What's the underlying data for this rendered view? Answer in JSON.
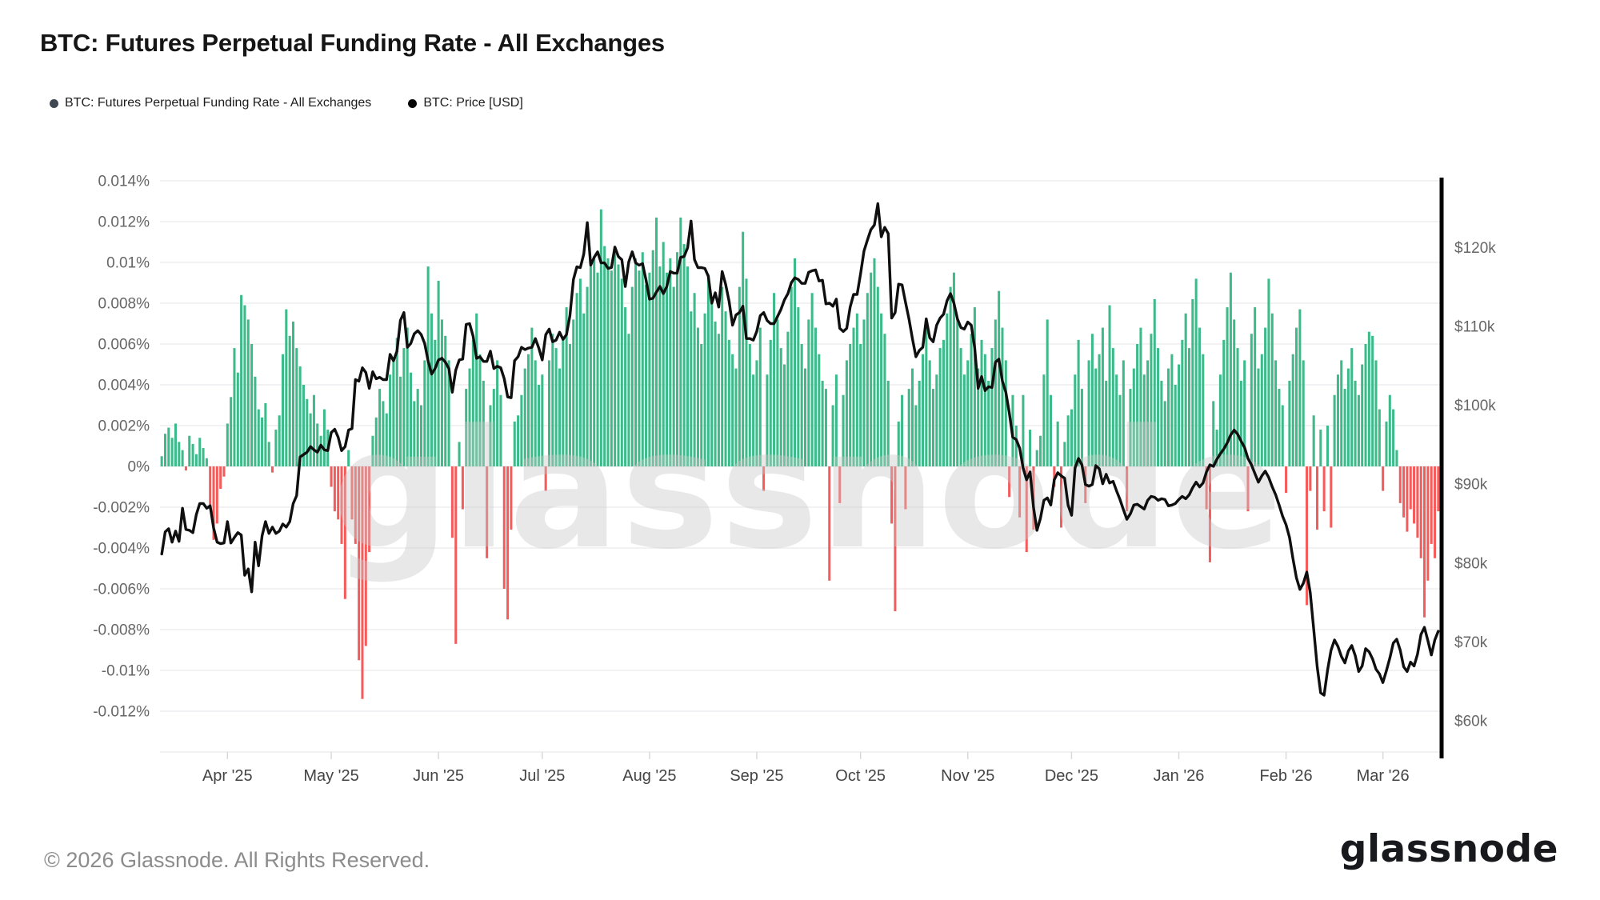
{
  "title": "BTC: Futures Perpetual Funding Rate - All Exchanges",
  "legend": [
    {
      "label": "BTC: Futures Perpetual Funding Rate - All Exchanges",
      "dot_color": "#3f4752"
    },
    {
      "label": "BTC: Price [USD]",
      "dot_color": "#050505"
    }
  ],
  "watermark": "glassnode",
  "footer": {
    "copyright": "© 2026 Glassnode. All Rights Reserved.",
    "logo_text": "glassnode"
  },
  "colors": {
    "funding_positive": "#3bbа8a",
    "positive_bar": "#3cba89",
    "negative_bar": "#f45b5b",
    "price_line": "#0f0f0f",
    "gridline": "#ededf0",
    "axis_spine": "#000000",
    "tick_label": "#666666",
    "x_tick_label": "#444444",
    "watermark_fill": "#c9c9c9"
  },
  "chart_data": {
    "type": "bar",
    "subtype": "combo-bar-line",
    "start_date": "2025-03-13",
    "end_date": "2026-03-17",
    "x_tick_labels": [
      "Apr '25",
      "May '25",
      "Jun '25",
      "Jul '25",
      "Aug '25",
      "Sep '25",
      "Oct '25",
      "Nov '25",
      "Dec '25",
      "Jan '26",
      "Feb '26",
      "Mar '26"
    ],
    "x_tick_day_index": [
      19,
      49,
      80,
      110,
      141,
      172,
      202,
      233,
      263,
      294,
      325,
      353
    ],
    "left_axis": {
      "title": "Funding Rate",
      "unit": "%",
      "min": -0.014,
      "max": 0.014,
      "ticks": [
        {
          "label": "0.014%",
          "value": 0.014
        },
        {
          "label": "0.012%",
          "value": 0.012
        },
        {
          "label": "0.01%",
          "value": 0.01
        },
        {
          "label": "0.008%",
          "value": 0.008
        },
        {
          "label": "0.006%",
          "value": 0.006
        },
        {
          "label": "0.004%",
          "value": 0.004
        },
        {
          "label": "0.002%",
          "value": 0.002
        },
        {
          "label": "0%",
          "value": 0
        },
        {
          "label": "-0.002%",
          "value": -0.002
        },
        {
          "label": "-0.004%",
          "value": -0.004
        },
        {
          "label": "-0.006%",
          "value": -0.006
        },
        {
          "label": "-0.008%",
          "value": -0.008
        },
        {
          "label": "-0.01%",
          "value": -0.01
        },
        {
          "label": "-0.012%",
          "value": -0.012
        }
      ],
      "unlabeled_gridlines": [
        -0.014
      ]
    },
    "right_axis": {
      "title": "BTC Price",
      "unit": "USD",
      "min": 56.0,
      "max": 128.4,
      "ticks": [
        {
          "label": "$120k",
          "value": 120
        },
        {
          "label": "$110k",
          "value": 110
        },
        {
          "label": "$100k",
          "value": 100
        },
        {
          "label": "$90k",
          "value": 90
        },
        {
          "label": "$80k",
          "value": 80
        },
        {
          "label": "$70k",
          "value": 70
        },
        {
          "label": "$60k",
          "value": 60
        }
      ]
    },
    "series": [
      {
        "name": "BTC: Futures Perpetual Funding Rate - All Exchanges",
        "type": "bar",
        "unit": "%",
        "axis": "left",
        "values": [
          0.0005,
          0.0016,
          0.0019,
          0.0014,
          0.0021,
          0.0012,
          0.0008,
          -0.0002,
          0.0015,
          0.0011,
          0.0006,
          0.0014,
          0.0009,
          0.0004,
          -0.0021,
          -0.0036,
          -0.0028,
          -0.0011,
          -0.0005,
          0.0021,
          0.0034,
          0.0058,
          0.0046,
          0.0084,
          0.0079,
          0.0072,
          0.006,
          0.0044,
          0.0028,
          0.0024,
          0.0031,
          0.0012,
          -0.0003,
          0.0018,
          0.0025,
          0.0055,
          0.0077,
          0.0064,
          0.0071,
          0.0058,
          0.0049,
          0.004,
          0.0033,
          0.0026,
          0.0035,
          0.0021,
          0.0015,
          0.0028,
          0.0018,
          -0.001,
          -0.0022,
          -0.0026,
          -0.0038,
          -0.0065,
          0.0008,
          -0.0026,
          -0.0038,
          -0.0095,
          -0.0114,
          -0.0088,
          -0.0042,
          0.0015,
          0.0024,
          0.0038,
          0.0032,
          0.0026,
          0.0045,
          0.0052,
          0.0063,
          0.0044,
          0.0058,
          0.0068,
          0.0046,
          0.0032,
          0.0038,
          0.003,
          0.0052,
          0.0098,
          0.0075,
          0.0062,
          0.0091,
          0.0072,
          0.0064,
          0.0052,
          -0.0035,
          -0.0087,
          0.0012,
          -0.0021,
          0.0038,
          0.0048,
          0.0062,
          0.0075,
          0.0055,
          0.0042,
          -0.0045,
          0.003,
          0.0038,
          0.0052,
          0.0035,
          -0.006,
          -0.0075,
          -0.0031,
          0.0022,
          0.0025,
          0.0035,
          0.0048,
          0.0055,
          0.0068,
          0.0052,
          0.004,
          0.0045,
          -0.0012,
          0.0052,
          0.0065,
          0.0058,
          0.0048,
          0.0062,
          0.0078,
          0.006,
          0.0072,
          0.0085,
          0.0092,
          0.0075,
          0.0088,
          0.0098,
          0.0102,
          0.0095,
          0.0126,
          0.0108,
          0.0102,
          0.0096,
          0.0105,
          0.0099,
          0.0092,
          0.0078,
          0.0065,
          0.0088,
          0.0102,
          0.0096,
          0.0105,
          0.0089,
          0.0095,
          0.0106,
          0.0122,
          0.0098,
          0.011,
          0.0095,
          0.0102,
          0.0088,
          0.0105,
          0.0122,
          0.0109,
          0.0098,
          0.0076,
          0.0085,
          0.0068,
          0.006,
          0.0075,
          0.0094,
          0.0082,
          0.0071,
          0.0065,
          0.0088,
          0.0076,
          0.0062,
          0.0055,
          0.0048,
          0.0088,
          0.0115,
          0.0092,
          0.006,
          0.0045,
          0.0052,
          0.0068,
          -0.0012,
          0.0045,
          0.0062,
          0.0085,
          0.0072,
          0.0058,
          0.005,
          0.0066,
          0.0088,
          0.0102,
          0.0078,
          0.006,
          0.0048,
          0.0072,
          0.0085,
          0.0068,
          0.0055,
          0.0042,
          0.0038,
          -0.0056,
          0.003,
          0.0045,
          -0.0018,
          0.0035,
          0.0052,
          0.006,
          0.0068,
          0.0075,
          0.006,
          0.0072,
          0.0085,
          0.0095,
          0.0102,
          0.0088,
          0.0075,
          0.0065,
          0.0042,
          -0.0028,
          -0.0071,
          0.0022,
          0.0035,
          -0.0021,
          0.0038,
          0.0048,
          0.003,
          0.0042,
          0.0055,
          0.0068,
          0.0052,
          0.0038,
          0.0045,
          0.0058,
          0.0062,
          0.0075,
          0.0088,
          0.0095,
          0.0072,
          0.0058,
          0.0045,
          0.0052,
          0.0065,
          0.0078,
          0.0048,
          0.0062,
          0.0055,
          0.0042,
          0.0058,
          0.0072,
          0.0086,
          0.0068,
          0.0052,
          -0.0015,
          0.0035,
          0.002,
          -0.0025,
          0.0035,
          -0.0042,
          0.0018,
          -0.0031,
          0.0008,
          0.0015,
          0.0045,
          0.0072,
          0.0035,
          -0.001,
          0.0022,
          -0.003,
          0.0012,
          0.0025,
          0.0028,
          0.0045,
          0.0062,
          0.0038,
          -0.0018,
          0.0052,
          0.0065,
          0.0048,
          0.0055,
          0.0068,
          0.0042,
          0.0079,
          0.0058,
          0.0045,
          0.0035,
          0.0052,
          -0.0022,
          0.0038,
          0.0048,
          0.006,
          0.0068,
          0.0045,
          0.0052,
          0.0065,
          0.0082,
          0.0058,
          0.0042,
          0.0032,
          0.0048,
          0.0055,
          0.004,
          0.005,
          0.0062,
          0.0075,
          0.0058,
          0.0082,
          0.0092,
          0.0068,
          0.0055,
          -0.0021,
          -0.0047,
          0.0032,
          0.0018,
          0.0045,
          0.0062,
          0.0078,
          0.0095,
          0.0072,
          0.0058,
          0.0042,
          0.0052,
          -0.0022,
          0.0065,
          0.0078,
          0.0048,
          0.0055,
          0.0068,
          0.0092,
          0.0075,
          0.0052,
          0.0038,
          0.003,
          -0.0013,
          0.0042,
          0.0055,
          0.0068,
          0.0077,
          0.0052,
          -0.0068,
          -0.0012,
          0.0025,
          -0.0031,
          0.0018,
          -0.0022,
          0.002,
          -0.003,
          0.0035,
          0.0045,
          0.0052,
          0.0038,
          0.0048,
          0.0058,
          0.0042,
          0.0035,
          0.005,
          0.006,
          0.0066,
          0.0064,
          0.0052,
          0.0028,
          -0.0012,
          0.0022,
          0.0035,
          0.0028,
          0.0008,
          -0.0018,
          -0.0025,
          -0.0032,
          -0.0021,
          -0.0028,
          -0.0035,
          -0.0045,
          -0.0074,
          -0.0056,
          -0.0038,
          -0.0045,
          -0.0022
        ]
      },
      {
        "name": "BTC: Price [USD]",
        "type": "line",
        "unit": "USD (thousands)",
        "axis": "right",
        "values": [
          81.1,
          83.9,
          84.3,
          82.6,
          84.0,
          82.7,
          86.9,
          84.2,
          84.1,
          83.8,
          86.1,
          87.5,
          87.5,
          86.9,
          87.2,
          84.4,
          82.6,
          82.4,
          82.5,
          85.2,
          82.5,
          83.2,
          83.8,
          83.5,
          78.4,
          79.2,
          76.3,
          82.6,
          79.6,
          83.4,
          85.2,
          83.7,
          84.5,
          83.7,
          84.0,
          84.9,
          84.5,
          85.2,
          87.5,
          88.5,
          93.4,
          93.7,
          94.0,
          94.7,
          94.3,
          94.0,
          94.9,
          94.3,
          94.2,
          96.5,
          96.9,
          95.9,
          94.2,
          94.7,
          96.8,
          97.0,
          103.2,
          103.0,
          104.7,
          104.1,
          102.1,
          104.2,
          103.3,
          103.5,
          103.2,
          103.2,
          106.4,
          105.6,
          106.8,
          110.7,
          111.7,
          107.3,
          107.8,
          109.0,
          109.4,
          108.9,
          107.8,
          105.6,
          103.9,
          104.6,
          105.7,
          105.9,
          105.4,
          104.6,
          101.6,
          104.4,
          105.7,
          105.8,
          110.2,
          110.3,
          108.7,
          105.9,
          106.1,
          105.5,
          105.5,
          106.8,
          104.6,
          104.9,
          104.7,
          103.3,
          101.0,
          100.9,
          105.6,
          106.1,
          107.3,
          107.0,
          107.2,
          107.3,
          108.4,
          107.2,
          105.7,
          108.9,
          109.6,
          108.0,
          108.2,
          109.2,
          108.3,
          108.9,
          111.3,
          115.9,
          117.5,
          117.4,
          119.1,
          123.1,
          117.7,
          118.7,
          119.4,
          118.0,
          118.0,
          117.3,
          117.4,
          120.0,
          118.8,
          118.4,
          115.0,
          118.1,
          119.4,
          118.0,
          117.7,
          117.9,
          115.8,
          113.4,
          113.5,
          114.3,
          115.0,
          114.1,
          115.0,
          116.9,
          116.7,
          116.7,
          118.7,
          118.8,
          119.9,
          123.3,
          118.4,
          117.4,
          117.4,
          117.3,
          116.3,
          112.9,
          114.2,
          112.4,
          116.9,
          115.3,
          113.1,
          110.1,
          111.4,
          111.7,
          112.5,
          108.4,
          108.4,
          108.2,
          109.3,
          111.3,
          111.7,
          110.7,
          110.3,
          110.3,
          111.2,
          112.1,
          113.3,
          114.1,
          115.5,
          116.1,
          115.9,
          115.4,
          115.4,
          116.8,
          117.0,
          117.1,
          115.7,
          115.8,
          112.8,
          112.9,
          112.5,
          113.4,
          109.7,
          109.3,
          109.7,
          112.4,
          114.0,
          114.0,
          116.6,
          119.5,
          120.9,
          122.2,
          122.8,
          125.5,
          121.3,
          122.5,
          121.7,
          111.0,
          111.7,
          115.3,
          115.2,
          113.0,
          110.9,
          108.4,
          106.1,
          106.9,
          107.3,
          110.9,
          108.5,
          108.0,
          110.1,
          111.0,
          111.5,
          113.2,
          114.1,
          112.9,
          110.9,
          109.8,
          109.6,
          110.5,
          110.1,
          107.2,
          102.1,
          103.6,
          101.8,
          102.3,
          102.2,
          105.4,
          105.8,
          103.0,
          101.6,
          99.0,
          95.9,
          95.6,
          94.5,
          92.0,
          90.5,
          91.5,
          87.0,
          84.1,
          85.6,
          87.9,
          88.2,
          87.3,
          90.5,
          91.4,
          91.0,
          90.7,
          87.3,
          86.0,
          92.0,
          93.2,
          92.4,
          89.9,
          89.7,
          89.9,
          92.3,
          91.9,
          90.0,
          91.2,
          90.1,
          90.3,
          89.1,
          88.0,
          86.7,
          85.5,
          86.2,
          87.3,
          87.4,
          87.1,
          86.8,
          87.9,
          88.4,
          88.3,
          87.9,
          88.1,
          88.0,
          87.2,
          87.3,
          87.5,
          88.0,
          88.4,
          88.1,
          88.6,
          89.5,
          90.2,
          89.6,
          90.1,
          91.5,
          92.4,
          92.2,
          93.1,
          93.8,
          94.4,
          95.2,
          96.2,
          96.8,
          96.3,
          95.4,
          94.6,
          93.2,
          92.4,
          91.3,
          90.2,
          91.0,
          91.6,
          90.8,
          89.6,
          88.6,
          87.3,
          85.9,
          84.8,
          83.2,
          80.5,
          78.1,
          76.6,
          77.4,
          78.8,
          76.2,
          71.5,
          66.8,
          63.5,
          63.2,
          66.4,
          68.9,
          70.2,
          69.4,
          68.1,
          67.3,
          68.8,
          69.5,
          68.2,
          66.2,
          66.9,
          69.1,
          68.7,
          67.8,
          66.5,
          65.9,
          64.8,
          66.3,
          67.9,
          69.8,
          70.3,
          68.9,
          66.8,
          66.2,
          67.4,
          66.9,
          68.4,
          70.9,
          71.8,
          70.1,
          68.3,
          70.2,
          71.3
        ]
      }
    ]
  }
}
